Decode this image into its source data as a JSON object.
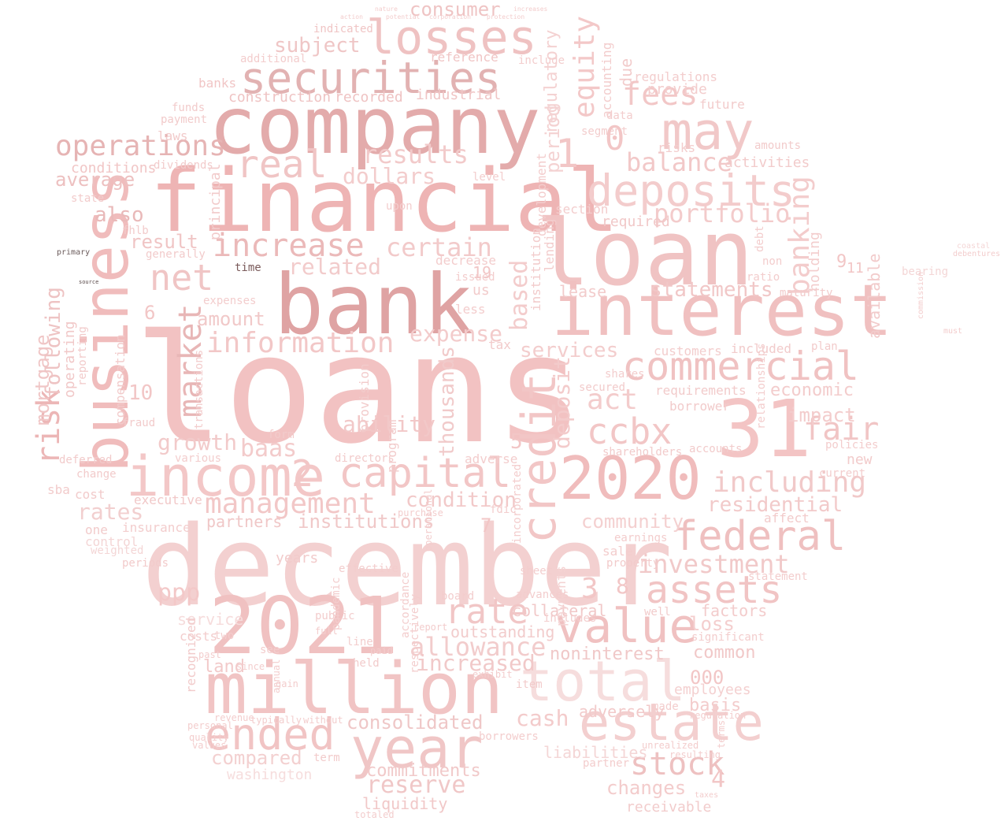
{
  "words": [
    {
      "text": "loans",
      "color": "#f2c2c2"
    },
    {
      "text": "december",
      "color": "#f3d0d0"
    },
    {
      "text": "financial",
      "color": "#eeb4b4"
    },
    {
      "text": "company",
      "color": "#e3abab"
    },
    {
      "text": "bank",
      "color": "#dfa3a3"
    },
    {
      "text": "loan",
      "color": "#f0c3c3"
    },
    {
      "text": "interest",
      "color": "#f0c0c0"
    },
    {
      "text": "million",
      "color": "#f1c4c4"
    },
    {
      "text": "2021",
      "color": "#f0c1c1"
    },
    {
      "text": "31",
      "color": "#f3c4c4"
    },
    {
      "text": "business",
      "color": "#f0bcbc"
    },
    {
      "text": "income",
      "color": "#f3c7c7"
    },
    {
      "text": "2020",
      "color": "#f0bcbc"
    },
    {
      "text": "securities",
      "color": "#e2b2b2"
    },
    {
      "text": "losses",
      "color": "#efc2c2"
    },
    {
      "text": "may",
      "color": "#f1c8c8"
    },
    {
      "text": "deposits",
      "color": "#f3cccc"
    },
    {
      "text": "total",
      "color": "#f6dddd"
    },
    {
      "text": "value",
      "color": "#f0c1c1"
    },
    {
      "text": "year",
      "color": "#f0c6c6"
    },
    {
      "text": "estate",
      "color": "#f3cfcf"
    },
    {
      "text": "ended",
      "color": "#f1c4c4"
    },
    {
      "text": "credit",
      "color": "#f2c6c6"
    },
    {
      "text": "capital",
      "color": "#f2c6c6"
    },
    {
      "text": "commercial",
      "color": "#f0c2c2"
    },
    {
      "text": "federal",
      "color": "#efc0c0"
    },
    {
      "text": "assets",
      "color": "#f1c4c4"
    },
    {
      "text": "ccbx",
      "color": "#f2c6c6"
    },
    {
      "text": "risk",
      "color": "#ecb6b6"
    },
    {
      "text": "net",
      "color": "#f0c5c5"
    },
    {
      "text": "real",
      "color": "#f0c5c5"
    },
    {
      "text": "operations",
      "color": "#e6b4b4"
    },
    {
      "text": "increase",
      "color": "#ebb9b9"
    },
    {
      "text": "information",
      "color": "#f2c7c7"
    },
    {
      "text": "management",
      "color": "#f2c7c7"
    },
    {
      "text": "market",
      "color": "#e8b6b6"
    },
    {
      "text": "stock",
      "color": "#eec1c1"
    },
    {
      "text": "fees",
      "color": "#f2c7c7"
    },
    {
      "text": "including",
      "color": "#f1c9c9"
    },
    {
      "text": "fair",
      "color": "#f1c5c5"
    },
    {
      "text": "investment",
      "color": "#f1c9c9"
    },
    {
      "text": "rate",
      "color": "#f1c6c6"
    },
    {
      "text": "allowance",
      "color": "#f2cccc"
    },
    {
      "text": "portfolio",
      "color": "#f3cbcb"
    },
    {
      "text": "balance",
      "color": "#f2c8c8"
    },
    {
      "text": "results",
      "color": "#f2caca"
    },
    {
      "text": "consumer",
      "color": "#efc4c4"
    },
    {
      "text": "equity",
      "color": "#f3c8c8"
    },
    {
      "text": "banking",
      "color": "#f3cccc"
    },
    {
      "text": "deposit",
      "color": "#f3cbcb"
    },
    {
      "text": "reserve",
      "color": "#f0c7c7"
    },
    {
      "text": "consolidated",
      "color": "#efc7c7"
    },
    {
      "text": "related",
      "color": "#f2cbcb"
    },
    {
      "text": "expense",
      "color": "#f3cbcb"
    },
    {
      "text": "dollars",
      "color": "#f3cccc"
    },
    {
      "text": "certain",
      "color": "#f2caca"
    },
    {
      "text": "ability",
      "color": "#f2c8c8"
    },
    {
      "text": "growth",
      "color": "#f2caca"
    },
    {
      "text": "baas",
      "color": "#f3cbcb"
    },
    {
      "text": "condition",
      "color": "#f2c9c9"
    },
    {
      "text": "community",
      "color": "#f4d0d0"
    },
    {
      "text": "institutions",
      "color": "#f0c8c8"
    },
    {
      "text": "residential",
      "color": "#f2caca"
    },
    {
      "text": "statements",
      "color": "#f1c7c7"
    },
    {
      "text": "increased",
      "color": "#f1c9c9"
    },
    {
      "text": "services",
      "color": "#f3cdcd"
    },
    {
      "text": "impact",
      "color": "#f3cccc"
    },
    {
      "text": "economic",
      "color": "#f3cccc"
    },
    {
      "text": "act",
      "color": "#f3cccc"
    },
    {
      "text": "ppp",
      "color": "#f3c8c8"
    },
    {
      "text": "cash",
      "color": "#f3cbcb"
    },
    {
      "text": "rates",
      "color": "#f2cfcf"
    },
    {
      "text": "changes",
      "color": "#f3cccc"
    },
    {
      "text": "compared",
      "color": "#f3d0d0"
    },
    {
      "text": "amount",
      "color": "#f1c9c9"
    },
    {
      "text": "also",
      "color": "#e9b9b9"
    },
    {
      "text": "average",
      "color": "#edc0c0"
    },
    {
      "text": "result",
      "color": "#f0c5c5"
    },
    {
      "text": "subject",
      "color": "#efc6c6"
    },
    {
      "text": "based",
      "color": "#f3cccc"
    },
    {
      "text": "thousands",
      "color": "#f1caca"
    },
    {
      "text": "mortgage",
      "color": "#f0c6c6"
    },
    {
      "text": "following",
      "color": "#eec3c3"
    },
    {
      "text": "noninterest",
      "color": "#f0c8c8"
    },
    {
      "text": "land",
      "color": "#f2caca"
    },
    {
      "text": "loss",
      "color": "#f4cece"
    },
    {
      "text": "factors",
      "color": "#f3cccc"
    },
    {
      "text": "common",
      "color": "#f1c8c8"
    },
    {
      "text": "basis",
      "color": "#f3cccc"
    },
    {
      "text": "commitments",
      "color": "#f1c9c9"
    },
    {
      "text": "outstanding",
      "color": "#f2cccc"
    },
    {
      "text": "collateral",
      "color": "#f1c8c8"
    },
    {
      "text": "employees",
      "color": "#f4d0d0"
    },
    {
      "text": "liquidity",
      "color": "#f1c8c8"
    },
    {
      "text": "partners",
      "color": "#f0c7c7"
    },
    {
      "text": "receivable",
      "color": "#f2cccc"
    },
    {
      "text": "washington",
      "color": "#f6dddd"
    },
    {
      "text": "liabilities",
      "color": "#f4d6d6"
    },
    {
      "text": "adversely",
      "color": "#f2caca"
    },
    {
      "text": "period",
      "color": "#f4d2d2"
    },
    {
      "text": "regulatory",
      "color": "#f4d2d2"
    },
    {
      "text": "construction",
      "color": "#efc3c3"
    },
    {
      "text": "recorded",
      "color": "#efc3c3"
    },
    {
      "text": "industrial",
      "color": "#f0c5c5"
    },
    {
      "text": "conditions",
      "color": "#f1c6c6"
    },
    {
      "text": "banks",
      "color": "#f1c6c6"
    },
    {
      "text": "reference",
      "color": "#f0c5c5"
    },
    {
      "text": "additional",
      "color": "#f3cdcd"
    },
    {
      "text": "indicated",
      "color": "#f0c5c5"
    },
    {
      "text": "regulations",
      "color": "#f3cdcd"
    },
    {
      "text": "provide",
      "color": "#f3cdcd"
    },
    {
      "text": "future",
      "color": "#f2cbcb"
    },
    {
      "text": "activities",
      "color": "#f2cbcb"
    },
    {
      "text": "amounts",
      "color": "#f2cbcb"
    },
    {
      "text": "risks",
      "color": "#f3cdcd"
    },
    {
      "text": "lease",
      "color": "#f2cbcb"
    },
    {
      "text": "section",
      "color": "#f3cdcd"
    },
    {
      "text": "required",
      "color": "#f1c8c8"
    },
    {
      "text": "requirements",
      "color": "#f2cbcb"
    },
    {
      "text": "customers",
      "color": "#f3cdcd"
    },
    {
      "text": "included",
      "color": "#f2cbcb"
    },
    {
      "text": "maturity",
      "color": "#f2cbcb"
    },
    {
      "text": "plan",
      "color": "#f2cbcb"
    },
    {
      "text": "borrower",
      "color": "#f2cbcb"
    },
    {
      "text": "accounts",
      "color": "#f2cbcb"
    },
    {
      "text": "new",
      "color": "#f2cbcb"
    },
    {
      "text": "current",
      "color": "#f3cdcd"
    },
    {
      "text": "policies",
      "color": "#f3cdcd"
    },
    {
      "text": "affect",
      "color": "#f2cbcb"
    },
    {
      "text": "shareholders",
      "color": "#f2cbcb"
    },
    {
      "text": "secured",
      "color": "#f2cbcb"
    },
    {
      "text": "shares",
      "color": "#f3cdcd"
    },
    {
      "text": "years",
      "color": "#f2cbcb"
    },
    {
      "text": "property",
      "color": "#f2cbcb"
    },
    {
      "text": "sale",
      "color": "#f3cdcd"
    },
    {
      "text": "earnings",
      "color": "#f3cdcd"
    },
    {
      "text": "service",
      "color": "#f6dcdc"
    },
    {
      "text": "costs",
      "color": "#f3cdcd"
    },
    {
      "text": "insurance",
      "color": "#f3cdcd"
    },
    {
      "text": "executive",
      "color": "#f1c8c8"
    },
    {
      "text": "cost",
      "color": "#f2cbcb"
    },
    {
      "text": "sba",
      "color": "#f2cbcb"
    },
    {
      "text": "change",
      "color": "#f2cbcb"
    },
    {
      "text": "deferred",
      "color": "#f2cbcb"
    },
    {
      "text": "various",
      "color": "#f3cdcd"
    },
    {
      "text": "directors",
      "color": "#f2cbcb"
    },
    {
      "text": "operating",
      "color": "#f1c8c8"
    },
    {
      "text": "reporting",
      "color": "#f2cbcb"
    },
    {
      "text": "compensation",
      "color": "#f2cbcb"
    },
    {
      "text": "fraud",
      "color": "#f2cbcb"
    },
    {
      "text": "principal",
      "color": "#f2cbcb"
    },
    {
      "text": "laws",
      "color": "#f2cbcb"
    },
    {
      "text": "payment",
      "color": "#f2cbcb"
    },
    {
      "text": "funds",
      "color": "#f2cbcb"
    },
    {
      "text": "state",
      "color": "#f2cbcb"
    },
    {
      "text": "fhlb",
      "color": "#f2cbcb"
    },
    {
      "text": "generally",
      "color": "#f2cbcb"
    },
    {
      "text": "dividends",
      "color": "#f2cbcb"
    },
    {
      "text": "time",
      "color": "#7a5a5a"
    },
    {
      "text": "primary",
      "color": "#6a5a5a"
    },
    {
      "text": "source",
      "color": "#5a4a4a"
    },
    {
      "text": "one",
      "color": "#f2cbcb"
    },
    {
      "text": "control",
      "color": "#f4d6d6"
    },
    {
      "text": "weighted",
      "color": "#f4d6d6"
    },
    {
      "text": "periods",
      "color": "#f2cbcb"
    },
    {
      "text": "recognized",
      "color": "#f2cbcb"
    },
    {
      "text": "well",
      "color": "#f2cbcb"
    },
    {
      "text": "payments",
      "color": "#f4d2d2"
    },
    {
      "text": "includes",
      "color": "#f3cdcd"
    },
    {
      "text": "advances",
      "color": "#f3cdcd"
    },
    {
      "text": "board",
      "color": "#f3cdcd"
    },
    {
      "text": "statement",
      "color": "#f3cdcd"
    },
    {
      "text": "significant",
      "color": "#f3cdcd"
    },
    {
      "text": "made",
      "color": "#f3cdcd"
    },
    {
      "text": "partner",
      "color": "#f3cdcd"
    },
    {
      "text": "borrowers",
      "color": "#f3cdcd"
    },
    {
      "text": "item",
      "color": "#f2cbcb"
    },
    {
      "text": "held",
      "color": "#f2cbcb"
    },
    {
      "text": "term",
      "color": "#f2cbcb"
    },
    {
      "text": "form",
      "color": "#f2cbcb"
    },
    {
      "text": "issued",
      "color": "#f3cdcd"
    },
    {
      "text": "less",
      "color": "#f3cdcd"
    },
    {
      "text": "tax",
      "color": "#f2cbcb"
    },
    {
      "text": "us",
      "color": "#f2cbcb"
    },
    {
      "text": "upon",
      "color": "#f3cdcd"
    },
    {
      "text": "level",
      "color": "#f3cdcd"
    },
    {
      "text": "due",
      "color": "#f2cbcb"
    },
    {
      "text": "accounting",
      "color": "#f3cdcd"
    },
    {
      "text": "holding",
      "color": "#f3cdcd"
    },
    {
      "text": "available",
      "color": "#f2cbcb"
    },
    {
      "text": "institution",
      "color": "#f2cbcb"
    },
    {
      "text": "development",
      "color": "#f3cdcd"
    },
    {
      "text": "lending",
      "color": "#f3cdcd"
    },
    {
      "text": "provision",
      "color": "#f2cbcb"
    },
    {
      "text": "program",
      "color": "#f2cbcb"
    },
    {
      "text": "decrease",
      "color": "#f3cdcd"
    },
    {
      "text": "adverse",
      "color": "#f3cdcd"
    },
    {
      "text": "incorporated",
      "color": "#f3cdcd"
    },
    {
      "text": "pandemic",
      "color": "#f3cdcd"
    },
    {
      "text": "accordance",
      "color": "#f3cdcd"
    },
    {
      "text": "respectively",
      "color": "#f3cdcd"
    },
    {
      "text": "segment",
      "color": "#f3cdcd"
    },
    {
      "text": "data",
      "color": "#f3cdcd"
    },
    {
      "text": "ratio",
      "color": "#f3cdcd"
    },
    {
      "text": "non",
      "color": "#f3cdcd"
    },
    {
      "text": "debt",
      "color": "#f3cdcd"
    },
    {
      "text": "relationships",
      "color": "#f3cdcd"
    },
    {
      "text": "expenses",
      "color": "#f3cdcd"
    },
    {
      "text": "transactions",
      "color": "#f3cdcd"
    },
    {
      "text": "include",
      "color": "#f3cdcd"
    },
    {
      "text": "fdic",
      "color": "#f3cdcd"
    },
    {
      "text": "purchase",
      "color": "#f3cdcd"
    },
    {
      "text": "report",
      "color": "#f3cdcd"
    },
    {
      "text": "operational",
      "color": "#f3cdcd"
    },
    {
      "text": "effective",
      "color": "#f3cdcd"
    },
    {
      "text": "sheet",
      "color": "#f3cdcd"
    },
    {
      "text": "public",
      "color": "#f3cdcd"
    },
    {
      "text": "full",
      "color": "#f3cdcd"
    },
    {
      "text": "line",
      "color": "#f3cdcd"
    },
    {
      "text": "paid",
      "color": "#f3cdcd"
    },
    {
      "text": "exhibit",
      "color": "#f3cdcd"
    },
    {
      "text": "see",
      "color": "#f3cdcd"
    },
    {
      "text": "since",
      "color": "#f3cdcd"
    },
    {
      "text": "gain",
      "color": "#f3cdcd"
    },
    {
      "text": "annual",
      "color": "#f3cdcd"
    },
    {
      "text": "two",
      "color": "#f3cdcd"
    },
    {
      "text": "past",
      "color": "#f3cdcd"
    },
    {
      "text": "personal",
      "color": "#f3cdcd"
    },
    {
      "text": "quality",
      "color": "#f3cdcd"
    },
    {
      "text": "values",
      "color": "#f3cdcd"
    },
    {
      "text": "revenue",
      "color": "#f3cdcd"
    },
    {
      "text": "typically",
      "color": "#f3cdcd"
    },
    {
      "text": "without",
      "color": "#f3cdcd"
    },
    {
      "text": "regulation",
      "color": "#f3cdcd"
    },
    {
      "text": "resulting",
      "color": "#f3cdcd"
    },
    {
      "text": "unrealized",
      "color": "#f3cdcd"
    },
    {
      "text": "terms",
      "color": "#f3cdcd"
    },
    {
      "text": "taxes",
      "color": "#f3cdcd"
    },
    {
      "text": "totaled",
      "color": "#f3cdcd"
    },
    {
      "text": "bearing",
      "color": "#f4d6d6"
    },
    {
      "text": "debentures",
      "color": "#f3cdcd"
    },
    {
      "text": "coastal",
      "color": "#f4d6d6"
    },
    {
      "text": "commission",
      "color": "#f3cdcd"
    },
    {
      "text": "must",
      "color": "#f3cdcd"
    },
    {
      "text": "nature",
      "color": "#f3cdcd"
    },
    {
      "text": "increases",
      "color": "#f3cdcd"
    },
    {
      "text": "action",
      "color": "#f3cdcd"
    },
    {
      "text": "potential",
      "color": "#f3cdcd"
    },
    {
      "text": "corporation",
      "color": "#f3cdcd"
    },
    {
      "text": "protection",
      "color": "#f3cdcd"
    },
    {
      "text": "1",
      "color": "#f2c6c6"
    },
    {
      "text": "0",
      "color": "#f2c6c6"
    },
    {
      "text": "2",
      "color": "#f2c6c6"
    },
    {
      "text": "3",
      "color": "#f2c6c6"
    },
    {
      "text": "8",
      "color": "#f2c6c6"
    },
    {
      "text": "4",
      "color": "#f2c6c6"
    },
    {
      "text": "5",
      "color": "#f2c6c6"
    },
    {
      "text": "6",
      "color": "#f2c6c6"
    },
    {
      "text": "7",
      "color": "#f2c6c6"
    },
    {
      "text": "9",
      "color": "#f2c6c6"
    },
    {
      "text": "10",
      "color": "#f2c6c6"
    },
    {
      "text": "11",
      "color": "#f2c6c6"
    },
    {
      "text": "19",
      "color": "#f2c6c6"
    },
    {
      "text": "000",
      "color": "#f2c6c6"
    }
  ]
}
